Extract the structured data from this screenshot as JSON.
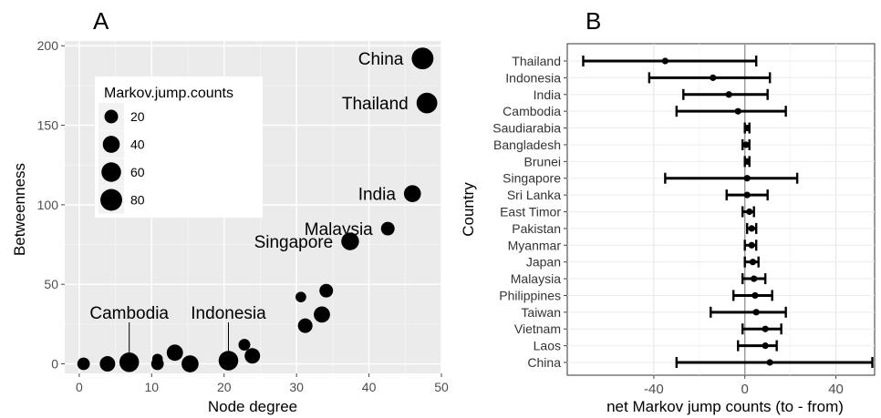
{
  "chart_data": [
    {
      "type": "scatter",
      "panel_label": "A",
      "xlabel": "Node degree",
      "ylabel": "Betweenness",
      "xlim": [
        -2,
        50
      ],
      "ylim": [
        -6,
        203
      ],
      "xticks": [
        "0",
        "10",
        "20",
        "30",
        "40",
        "50"
      ],
      "yticks": [
        "0",
        "50",
        "100",
        "150",
        "200"
      ],
      "size_legend": {
        "title": "Markov.jump.counts",
        "entries": [
          {
            "label": "20",
            "value": 20
          },
          {
            "label": "40",
            "value": 40
          },
          {
            "label": "60",
            "value": 60
          },
          {
            "label": "80",
            "value": 80
          }
        ]
      },
      "points": [
        {
          "x": 47.4,
          "y": 192,
          "size": 80,
          "label": "China"
        },
        {
          "x": 48.0,
          "y": 164,
          "size": 70,
          "label": "Thailand"
        },
        {
          "x": 46.0,
          "y": 107,
          "size": 40,
          "label": "India"
        },
        {
          "x": 42.6,
          "y": 85,
          "size": 20,
          "label": "Malaysia"
        },
        {
          "x": 37.4,
          "y": 77,
          "size": 45,
          "label": "Singapore"
        },
        {
          "x": 6.9,
          "y": 1,
          "size": 60,
          "label": "Cambodia"
        },
        {
          "x": 20.6,
          "y": 2,
          "size": 60,
          "label": "Indonesia"
        },
        {
          "x": 0.6,
          "y": 0,
          "size": 15
        },
        {
          "x": 3.9,
          "y": 0,
          "size": 30
        },
        {
          "x": 10.8,
          "y": 3,
          "size": 8
        },
        {
          "x": 10.8,
          "y": 0,
          "size": 15
        },
        {
          "x": 13.2,
          "y": 7,
          "size": 35
        },
        {
          "x": 15.3,
          "y": 0,
          "size": 40
        },
        {
          "x": 22.8,
          "y": 12,
          "size": 12
        },
        {
          "x": 23.9,
          "y": 5,
          "size": 30
        },
        {
          "x": 30.6,
          "y": 42,
          "size": 8
        },
        {
          "x": 31.2,
          "y": 24,
          "size": 25
        },
        {
          "x": 33.5,
          "y": 31,
          "size": 35
        },
        {
          "x": 34.1,
          "y": 46,
          "size": 20
        }
      ],
      "callouts": [
        {
          "label": "Cambodia",
          "x": 6.9
        },
        {
          "label": "Indonesia",
          "x": 20.6
        }
      ]
    },
    {
      "type": "errorbar",
      "panel_label": "B",
      "xlabel": "net Markov jump counts (to - from)",
      "ylabel": "Country",
      "xlim": [
        -78,
        57
      ],
      "xticks": [
        -40,
        0,
        40
      ],
      "xtick_labels": [
        "-40",
        "0",
        "40"
      ],
      "categories": [
        "Thailand",
        "Indonesia",
        "India",
        "Cambodia",
        "Saudiarabia",
        "Bangladesh",
        "Brunei",
        "Singapore",
        "Sri Lanka",
        "East Timor",
        "Pakistan",
        "Myanmar",
        "Japan",
        "Malaysia",
        "Philippines",
        "Taiwan",
        "Vietnam",
        "Laos",
        "China"
      ],
      "estimates": [
        -35,
        -14,
        -7,
        -3,
        1,
        0.5,
        1,
        1,
        1,
        2,
        3,
        3,
        3.5,
        4,
        4.5,
        5,
        9,
        9,
        11
      ],
      "lower": [
        -71,
        -42,
        -27,
        -30,
        0,
        -1,
        0,
        -35,
        -8,
        -1,
        1,
        0,
        0,
        -1,
        -5,
        -15,
        -1,
        -3,
        -30
      ],
      "upper": [
        5,
        11,
        10,
        18,
        2,
        2,
        2,
        23,
        10,
        4,
        5,
        5,
        6,
        9,
        12,
        18,
        16,
        14,
        56
      ]
    }
  ]
}
